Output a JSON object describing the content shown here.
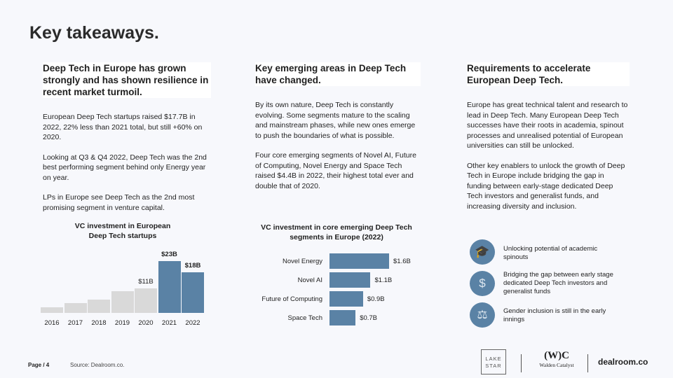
{
  "title": "Key takeaways.",
  "columns": [
    {
      "heading": "Deep Tech in Europe has grown strongly and has shown resilience in recent market turmoil.",
      "paragraphs": [
        "European Deep Tech startups raised $17.7B in 2022, 22% less than 2021 total, but still +60% on 2020.",
        "Looking at Q3 & Q4 2022, Deep Tech was the 2nd best performing segment behind only Energy year on year.",
        "LPs in Europe see Deep Tech as the 2nd most promising segment in venture capital."
      ]
    },
    {
      "heading": "Key emerging areas in Deep Tech have changed.",
      "paragraphs": [
        "By its own nature, Deep Tech is constantly evolving. Some segments mature to the scaling and mainstream phases, while new ones emerge to push the boundaries of what is possible.",
        "Four core emerging segments of Novel AI, Future of Computing, Novel Energy and Space Tech raised $4.4B in 2022, their highest total ever and double that of 2020."
      ]
    },
    {
      "heading": "Requirements to accelerate European Deep Tech.",
      "paragraphs": [
        "Europe has great technical talent and research to lead in Deep Tech. Many European Deep Tech successes have their roots in academia, spinout processes and unrealised potential of European universities can still be unlocked.",
        "Other key enablers to unlock the growth of Deep Tech in Europe include bridging the gap in funding between early-stage dedicated Deep Tech investors and generalist funds, and increasing diversity and inclusion."
      ]
    }
  ],
  "chart_data": [
    {
      "type": "bar",
      "title": "VC investment in European Deep Tech startups",
      "categories": [
        "2016",
        "2017",
        "2018",
        "2019",
        "2020",
        "2021",
        "2022"
      ],
      "values": [
        2.4,
        4.4,
        5.9,
        9.7,
        11,
        23,
        18
      ],
      "data_labels": [
        "",
        "",
        "",
        "",
        "$11B",
        "$23B",
        "$18B"
      ],
      "unit": "$B",
      "colors": [
        "#d9d9d9",
        "#d9d9d9",
        "#d9d9d9",
        "#d9d9d9",
        "#d9d9d9",
        "#5a82a5",
        "#5a82a5"
      ]
    },
    {
      "type": "bar",
      "orientation": "horizontal",
      "title": "VC investment in core emerging Deep Tech segments in Europe (2022)",
      "categories": [
        "Novel Energy",
        "Novel AI",
        "Future of Computing",
        "Space Tech"
      ],
      "values": [
        1.6,
        1.1,
        0.9,
        0.7
      ],
      "data_labels": [
        "$1.6B",
        "$1.1B",
        "$0.9B",
        "$0.7B"
      ],
      "unit": "$B",
      "color": "#5a82a5"
    }
  ],
  "requirements": [
    {
      "icon": "graduation-cap-icon",
      "text": "Unlocking potential of academic spinouts"
    },
    {
      "icon": "hand-coin-icon",
      "text": "Bridging the gap between early stage dedicated  Deep Tech investors and generalist funds"
    },
    {
      "icon": "scales-icon",
      "text": "Gender inclusion is still in the early innings"
    }
  ],
  "footer": {
    "page": "Page / 4",
    "source": "Source: Dealroom.co."
  },
  "logos": {
    "lakestar": "LAKE STAR",
    "walden_mark": "(W)C",
    "walden": "Walden Catalyst",
    "dealroom": "dealroom.co"
  }
}
